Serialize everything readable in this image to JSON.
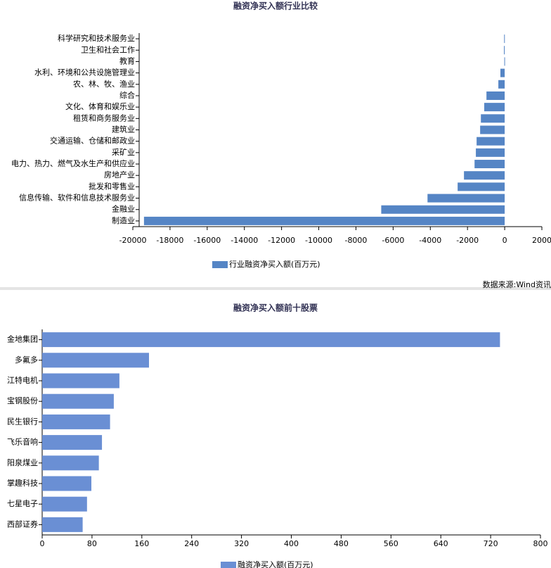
{
  "chart_data": [
    {
      "type": "bar",
      "orientation": "horizontal",
      "title": "融资净买入额行业比较",
      "categories": [
        "科学研究和技术服务业",
        "卫生和社会工作",
        "教育",
        "水利、环境和公共设施管理业",
        "农、林、牧、渔业",
        "综合",
        "文化、体育和娱乐业",
        "租赁和商务服务业",
        "建筑业",
        "交通运输、仓储和邮政业",
        "采矿业",
        "电力、热力、燃气及水生产和供应业",
        "房地产业",
        "批发和零售业",
        "信息传输、软件和信息技术服务业",
        "金融业",
        "制造业"
      ],
      "series": [
        {
          "name": "行业融资净买入额(百万元)",
          "color": "#5585c5",
          "values": [
            -30,
            -40,
            -20,
            -230,
            -340,
            -980,
            -1100,
            -1280,
            -1320,
            -1510,
            -1550,
            -1620,
            -2190,
            -2530,
            -4150,
            -6640,
            -19400
          ]
        }
      ],
      "xlim": [
        -20000,
        2000
      ],
      "xticks": [
        -20000,
        -18000,
        -16000,
        -14000,
        -12000,
        -10000,
        -8000,
        -6000,
        -4000,
        -2000,
        0,
        2000
      ]
    },
    {
      "type": "bar",
      "orientation": "horizontal",
      "title": "融资净买入额前十股票",
      "categories": [
        "金地集团",
        "多氟多",
        "江特电机",
        "宝钢股份",
        "民生银行",
        "飞乐音响",
        "阳泉煤业",
        "掌趣科技",
        "七星电子",
        "西部证券"
      ],
      "series": [
        {
          "name": "融资净买入额(百万元)",
          "color": "#6a8fd4",
          "values": [
            735,
            171.5,
            124,
            115,
            109,
            96,
            91,
            79,
            72,
            65
          ]
        }
      ],
      "xlim": [
        0,
        800
      ],
      "xticks": [
        0,
        80,
        160,
        240,
        320,
        400,
        480,
        560,
        640,
        720,
        800
      ]
    }
  ],
  "source": "数据来源:Wind资讯"
}
